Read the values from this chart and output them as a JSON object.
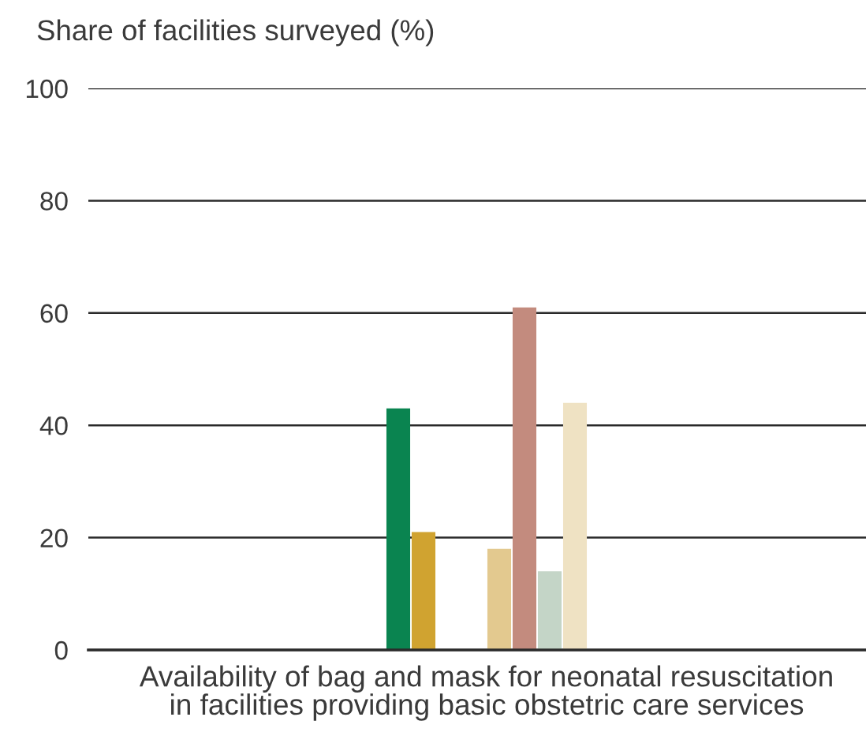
{
  "chart_data": {
    "type": "bar",
    "ylabel": "Share of facilities surveyed (%)",
    "categories": [
      "Availability of bag and mask for neonatal resuscitation\nin facilities providing basic obstetric care services"
    ],
    "series": [
      {
        "color": "#0a8450",
        "values": [
          43
        ]
      },
      {
        "color": "#d0a330",
        "values": [
          21
        ]
      },
      {
        "values": [
          null
        ]
      },
      {
        "values": [
          null
        ]
      },
      {
        "color": "#e3c98f",
        "values": [
          18
        ]
      },
      {
        "color": "#c38b7e",
        "values": [
          61
        ]
      },
      {
        "color": "#c4d5c7",
        "values": [
          14
        ]
      },
      {
        "color": "#efe2c3",
        "values": [
          44
        ]
      }
    ],
    "ylim": [
      0,
      100
    ],
    "yticks": [
      0,
      20,
      40,
      60,
      80,
      100
    ],
    "grid": "y"
  }
}
